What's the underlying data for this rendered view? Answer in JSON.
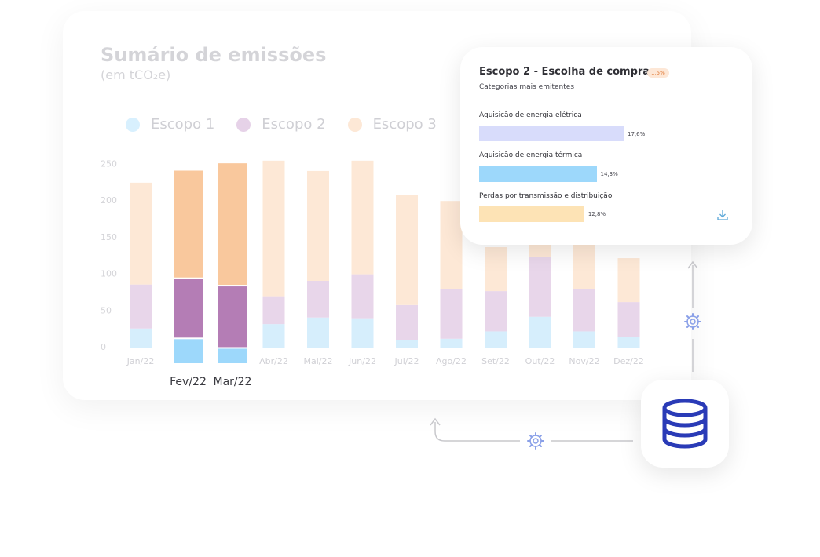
{
  "chart_data": {
    "type": "bar",
    "stacked": true,
    "title": "Sumário de emissões",
    "subtitle": "(em tCO₂e)",
    "categories": [
      "Jan/22",
      "Fev/22",
      "Mar/22",
      "Abr/22",
      "Mai/22",
      "Jun/22",
      "Jul/22",
      "Ago/22",
      "Set/22",
      "Out/22",
      "Nov/22",
      "Dez/22"
    ],
    "highlighted": [
      "Fev/22",
      "Mar/22"
    ],
    "series": [
      {
        "name": "Escopo 1",
        "color": "#9dd8fb",
        "values": [
          26,
          35,
          22,
          32,
          41,
          40,
          10,
          12,
          22,
          42,
          22,
          15
        ]
      },
      {
        "name": "Escopo 2",
        "color": "#b47db5",
        "values": [
          60,
          82,
          85,
          38,
          50,
          60,
          48,
          68,
          55,
          82,
          58,
          47
        ]
      },
      {
        "name": "Escopo 3",
        "color": "#f9c89d",
        "values": [
          139,
          148,
          168,
          185,
          150,
          155,
          150,
          120,
          60,
          40,
          70,
          60
        ]
      }
    ],
    "yticks": [
      0,
      50,
      100,
      150,
      200,
      250
    ],
    "ylim": [
      0,
      260
    ],
    "grid": false,
    "legend": "top-left"
  },
  "popup": {
    "title": "Escopo 2 - Escolha de compra",
    "badge": "1,5%",
    "subtitle": "Categorias mais emitentes",
    "bars": [
      {
        "label": "Aquisição de energia elétrica",
        "value": "17,6%",
        "pct": 17.6,
        "color": "#d8dcfb"
      },
      {
        "label": "Aquisição de energia térmica",
        "value": "14,3%",
        "pct": 14.3,
        "color": "#9dd8fb"
      },
      {
        "label": "Perdas por transmissão e distribuição",
        "value": "12,8%",
        "pct": 12.8,
        "color": "#fde3b5"
      }
    ],
    "download_icon": "download-icon"
  },
  "icons": {
    "database": "database-icon",
    "gear": "gear-icon",
    "arrow_up": "arrow-up-icon"
  },
  "colors": {
    "accent": "#2a3bb7"
  }
}
